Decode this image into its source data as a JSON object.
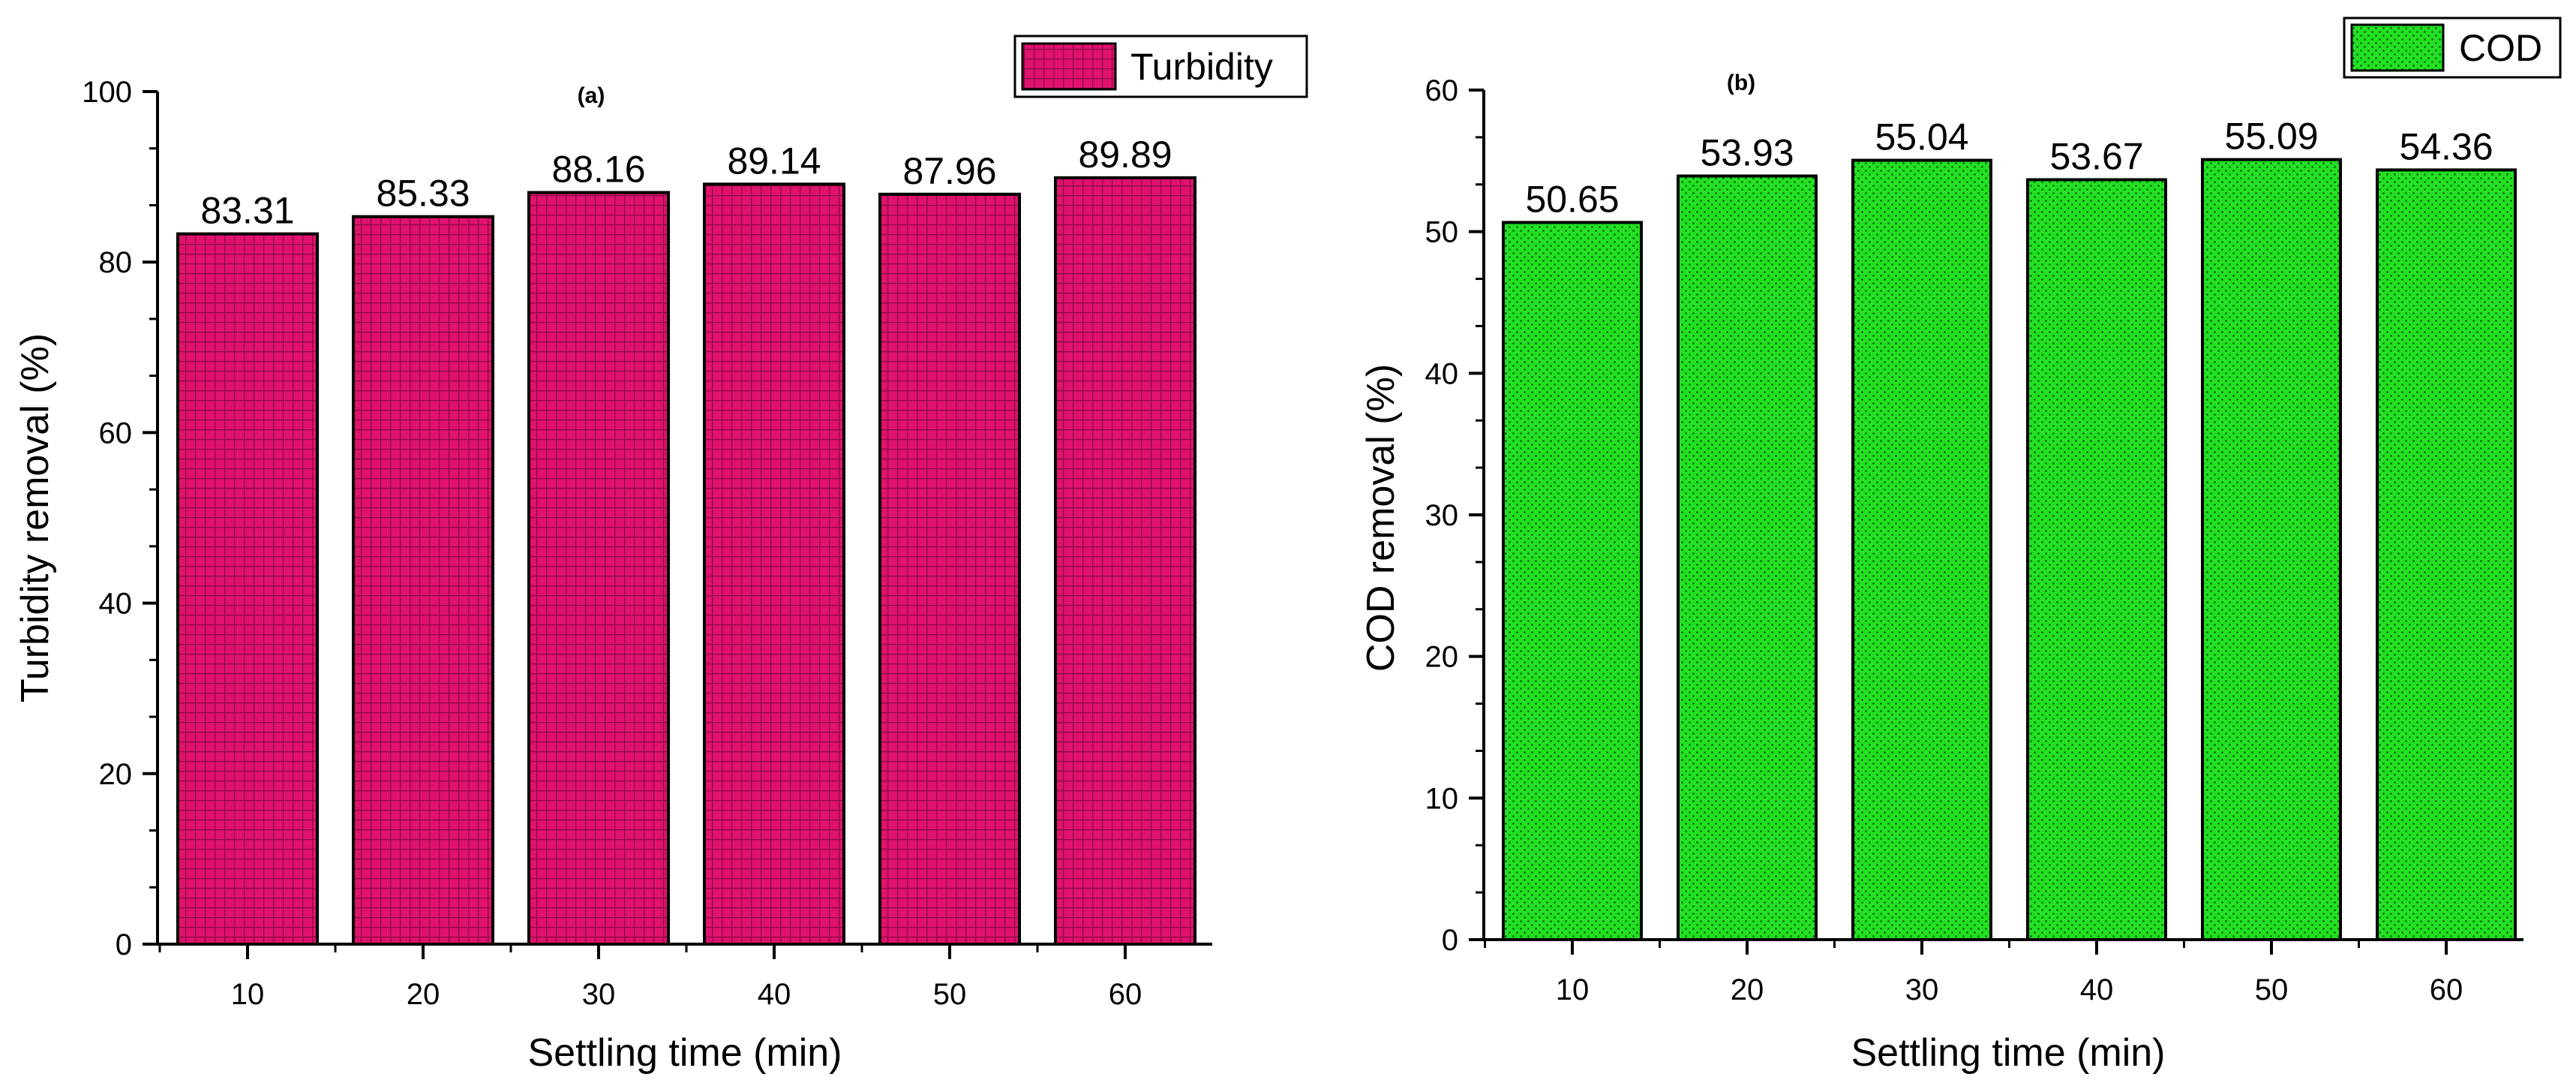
{
  "chart_data": [
    {
      "type": "bar",
      "title": "(a)",
      "categories": [
        "10",
        "20",
        "30",
        "40",
        "50",
        "60"
      ],
      "series": [
        {
          "name": "Turbidity",
          "values": [
            83.31,
            85.33,
            88.16,
            89.14,
            87.96,
            89.89
          ]
        }
      ],
      "value_labels": [
        "83.31",
        "85.33",
        "88.16",
        "89.14",
        "87.96",
        "89.89"
      ],
      "xlabel": "Settling time (min)",
      "ylabel": "Turbidity removal (%)",
      "ylim": [
        0,
        100
      ],
      "yticks": [
        "0",
        "20",
        "40",
        "60",
        "80",
        "100"
      ],
      "grid": false,
      "legend_position": "top-right",
      "color": "#e0126e",
      "pattern": "grid"
    },
    {
      "type": "bar",
      "title": "(b)",
      "categories": [
        "10",
        "20",
        "30",
        "40",
        "50",
        "60"
      ],
      "series": [
        {
          "name": "COD",
          "values": [
            50.65,
            53.93,
            55.04,
            53.67,
            55.09,
            54.36
          ]
        }
      ],
      "value_labels": [
        "50.65",
        "53.93",
        "55.04",
        "53.67",
        "55.09",
        "54.36"
      ],
      "xlabel": "Settling time (min)",
      "ylabel": "COD removal (%)",
      "ylim": [
        0,
        60
      ],
      "yticks": [
        "0",
        "10",
        "20",
        "30",
        "40",
        "50",
        "60"
      ],
      "grid": false,
      "legend_position": "top-right",
      "color": "#22e022",
      "pattern": "dots"
    }
  ]
}
